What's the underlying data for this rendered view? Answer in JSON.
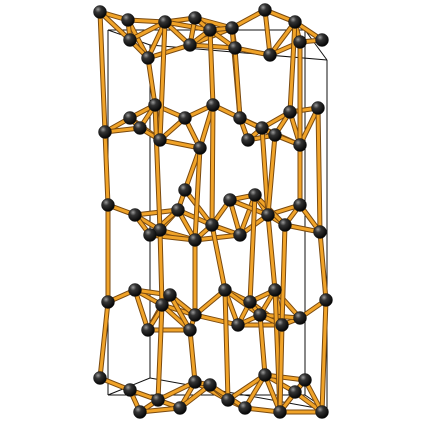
{
  "figure": {
    "kind": "crystal-structure-ball-and-stick",
    "atom_color": "#111111",
    "atom_highlight": "#8a8a8a",
    "bond_color": "#f0a328",
    "bond_outline": "#7a4a10",
    "cell_edge_color": "#111111",
    "background": "#ffffff"
  }
}
